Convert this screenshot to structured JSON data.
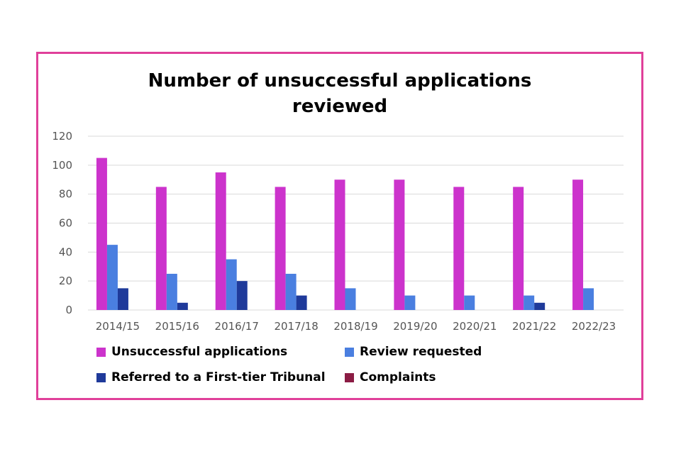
{
  "chart_data": {
    "type": "bar",
    "title": "Number of unsuccessful applications reviewed",
    "title_lines": [
      "Number of unsuccessful applications",
      "reviewed"
    ],
    "xlabel": "",
    "ylabel": "",
    "ylim": [
      0,
      120
    ],
    "yticks": [
      0,
      20,
      40,
      60,
      80,
      100,
      120
    ],
    "grid": true,
    "legend_position": "bottom",
    "categories": [
      "2014/15",
      "2015/16",
      "2016/17",
      "2017/18",
      "2018/19",
      "2019/20",
      "2020/21",
      "2021/22",
      "2022/23"
    ],
    "series": [
      {
        "name": "Unsuccessful applications",
        "color": "#cc33cc",
        "values": [
          105,
          85,
          95,
          85,
          90,
          90,
          85,
          85,
          90
        ]
      },
      {
        "name": "Review requested",
        "color": "#4a7fe0",
        "values": [
          45,
          25,
          35,
          25,
          15,
          10,
          10,
          10,
          15
        ]
      },
      {
        "name": "Referred to a First-tier Tribunal",
        "color": "#1f3a9a",
        "values": [
          15,
          5,
          20,
          10,
          0,
          0,
          0,
          5,
          0
        ]
      },
      {
        "name": "Complaints",
        "color": "#8b1c44",
        "values": [
          0,
          0,
          0,
          0,
          0,
          0,
          0,
          0,
          0
        ]
      }
    ]
  }
}
